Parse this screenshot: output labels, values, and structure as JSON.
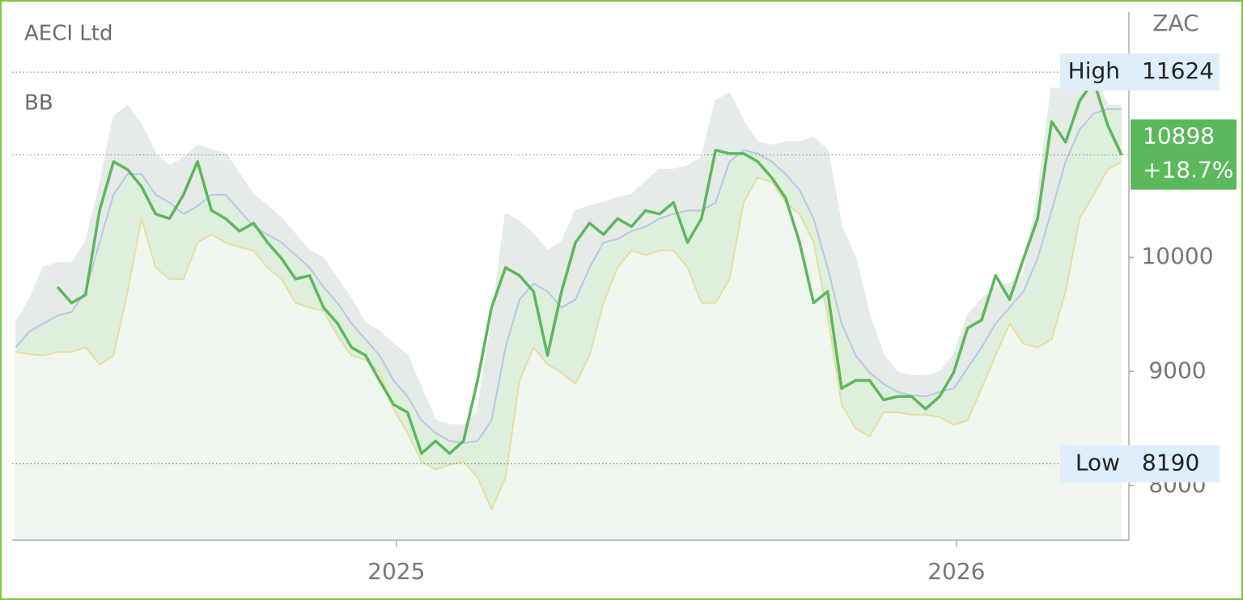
{
  "chart_data": {
    "type": "line",
    "title": "AECI Ltd",
    "subtitle": "BB",
    "y_axis_label": "ZAC",
    "y_axis_side": "right",
    "x": [
      2024.32,
      2024.345,
      2024.37,
      2024.395,
      2024.42,
      2024.445,
      2024.47,
      2024.495,
      2024.52,
      2024.545,
      2024.57,
      2024.595,
      2024.62,
      2024.645,
      2024.67,
      2024.695,
      2024.72,
      2024.745,
      2024.77,
      2024.795,
      2024.82,
      2024.845,
      2024.87,
      2024.895,
      2024.92,
      2024.945,
      2024.97,
      2024.995,
      2025.02,
      2025.045,
      2025.07,
      2025.095,
      2025.12,
      2025.145,
      2025.17,
      2025.195,
      2025.22,
      2025.245,
      2025.27,
      2025.295,
      2025.32,
      2025.345,
      2025.37,
      2025.395,
      2025.42,
      2025.445,
      2025.47,
      2025.495,
      2025.52,
      2025.545,
      2025.57,
      2025.595,
      2025.62,
      2025.645,
      2025.67,
      2025.695,
      2025.72,
      2025.745,
      2025.77,
      2025.795,
      2025.82,
      2025.845,
      2025.87,
      2025.895,
      2025.92,
      2025.945,
      2025.97,
      2025.995,
      2026.02,
      2026.045,
      2026.07,
      2026.095,
      2026.12,
      2026.145,
      2026.17,
      2026.195,
      2026.22,
      2026.245,
      2026.27,
      2026.295
    ],
    "series": [
      {
        "color": "#e5ebe7",
        "fill": "#e5ebe7",
        "values": [
          9420,
          9630,
          9910,
          9950,
          9950,
          10130,
          10620,
          11230,
          11330,
          11160,
          10910,
          10800,
          10870,
          10980,
          10940,
          10910,
          10730,
          10550,
          10450,
          10340,
          10200,
          10060,
          9990,
          9810,
          9630,
          9420,
          9350,
          9240,
          9140,
          8850,
          8570,
          8530,
          8530,
          8640,
          9420,
          10380,
          10310,
          10200,
          10060,
          10130,
          10410,
          10450,
          10480,
          10520,
          10550,
          10660,
          10770,
          10770,
          10800,
          10870,
          11370,
          11440,
          11190,
          11010,
          10980,
          11010,
          11010,
          11050,
          10940,
          10270,
          9990,
          9490,
          9140,
          8990,
          8960,
          8960,
          8990,
          9140,
          9490,
          9630,
          9740,
          9770,
          9840,
          10550,
          11480,
          11480,
          11620,
          11620,
          11330,
          11330
        ]
      },
      {
        "color": "#bcc6ea",
        "fill": "#deefdd",
        "values": [
          9210,
          9350,
          9420,
          9490,
          9520,
          9700,
          10130,
          10550,
          10730,
          10730,
          10550,
          10480,
          10380,
          10450,
          10550,
          10550,
          10410,
          10270,
          10200,
          10130,
          10020,
          9910,
          9740,
          9600,
          9420,
          9280,
          9140,
          8920,
          8780,
          8570,
          8460,
          8390,
          8370,
          8390,
          8570,
          9210,
          9630,
          9770,
          9700,
          9560,
          9630,
          9910,
          10130,
          10160,
          10230,
          10270,
          10340,
          10380,
          10410,
          10410,
          10480,
          10840,
          10940,
          10910,
          10840,
          10730,
          10590,
          10340,
          9910,
          9420,
          9140,
          8990,
          8890,
          8820,
          8790,
          8780,
          8820,
          8850,
          9030,
          9210,
          9420,
          9560,
          9700,
          9990,
          10410,
          10840,
          11120,
          11260,
          11300,
          11300
        ]
      },
      {
        "color": "#e8de9c",
        "fill": "#eff6ef",
        "values": [
          9170,
          9150,
          9140,
          9170,
          9170,
          9210,
          9060,
          9140,
          9700,
          10340,
          9910,
          9810,
          9810,
          10130,
          10200,
          10130,
          10090,
          10060,
          9910,
          9810,
          9600,
          9560,
          9530,
          9310,
          9140,
          9100,
          8990,
          8670,
          8460,
          8210,
          8140,
          8180,
          8210,
          8070,
          7790,
          8070,
          8920,
          9210,
          9060,
          8990,
          8890,
          9140,
          9600,
          9910,
          10060,
          10020,
          10060,
          10060,
          9910,
          9600,
          9600,
          9810,
          10480,
          10700,
          10660,
          10480,
          10380,
          10130,
          9490,
          8710,
          8500,
          8430,
          8640,
          8640,
          8620,
          8620,
          8600,
          8530,
          8570,
          8850,
          9140,
          9420,
          9240,
          9210,
          9280,
          9700,
          10340,
          10550,
          10770,
          10840
        ]
      },
      {
        "color": "#5cb85c",
        "values": [
          null,
          null,
          null,
          9740,
          9600,
          9670,
          10410,
          10840,
          10770,
          10620,
          10380,
          10340,
          10550,
          10840,
          10410,
          10340,
          10230,
          10300,
          10130,
          9990,
          9810,
          9840,
          9560,
          9420,
          9210,
          9140,
          8920,
          8710,
          8640,
          8280,
          8390,
          8280,
          8390,
          8920,
          9560,
          9910,
          9840,
          9700,
          9140,
          9700,
          10130,
          10300,
          10200,
          10340,
          10270,
          10410,
          10380,
          10480,
          10130,
          10340,
          10940,
          10910,
          10910,
          10840,
          10700,
          10520,
          10130,
          9600,
          9700,
          8850,
          8920,
          8920,
          8750,
          8780,
          8780,
          8670,
          8780,
          8990,
          9380,
          9450,
          9840,
          9630,
          9990,
          10340,
          11190,
          11010,
          11370,
          11550,
          11160,
          10898
        ]
      }
    ],
    "xlim": [
      2024.314,
      2026.308
    ],
    "xticks": [
      2025,
      2026
    ],
    "ylim": [
      7520,
      12150
    ],
    "yticks": [
      8000,
      9000,
      10000
    ],
    "high": {
      "label": "High",
      "value": 11624
    },
    "low": {
      "label": "Low",
      "value": 8190
    },
    "last": {
      "value": 10898,
      "change": {
        "value": 18.7,
        "label": "+18.7%"
      },
      "color": "#5cb85c"
    }
  }
}
